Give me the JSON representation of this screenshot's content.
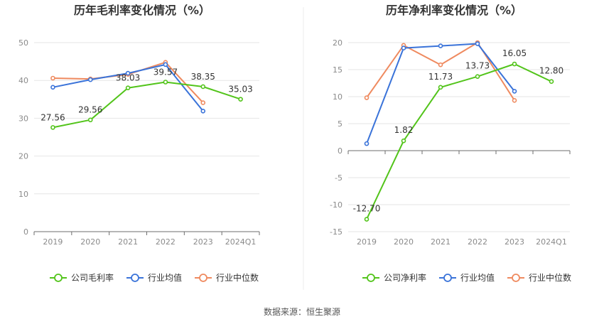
{
  "source": "数据来源：恒生聚源",
  "chart_data": [
    {
      "type": "line",
      "title": "历年毛利率变化情况（%）",
      "categories": [
        "2019",
        "2020",
        "2021",
        "2022",
        "2023",
        "2024Q1"
      ],
      "ylim": [
        0,
        50
      ],
      "yticks": [
        0,
        10,
        20,
        30,
        40,
        50
      ],
      "grid": true,
      "legend_position": "bottom",
      "series": [
        {
          "name": "公司毛利率",
          "color": "#52c41a",
          "values": [
            27.56,
            29.56,
            38.03,
            39.57,
            38.35,
            35.03
          ],
          "labels": [
            "27.56",
            "29.56",
            "38.03",
            "39.57",
            "38.35",
            "35.03"
          ]
        },
        {
          "name": "行业均值",
          "color": "#3a73d9",
          "values": [
            38.2,
            40.2,
            41.9,
            44.2,
            31.9,
            null
          ]
        },
        {
          "name": "行业中位数",
          "color": "#ef8a5f",
          "values": [
            40.6,
            40.4,
            41.6,
            44.8,
            34.1,
            null
          ]
        }
      ]
    },
    {
      "type": "line",
      "title": "历年净利率变化情况（%）",
      "categories": [
        "2019",
        "2020",
        "2021",
        "2022",
        "2023",
        "2024Q1"
      ],
      "ylim": [
        -15,
        20
      ],
      "yticks": [
        -15,
        -10,
        -5,
        0,
        5,
        10,
        15,
        20
      ],
      "grid": true,
      "legend_position": "bottom",
      "series": [
        {
          "name": "公司净利率",
          "color": "#52c41a",
          "values": [
            -12.7,
            1.82,
            11.73,
            13.73,
            16.05,
            12.8
          ],
          "labels": [
            "-12.70",
            "1.82",
            "11.73",
            "13.73",
            "16.05",
            "12.80"
          ]
        },
        {
          "name": "行业均值",
          "color": "#3a73d9",
          "values": [
            1.3,
            19.0,
            19.4,
            19.8,
            11.0,
            null
          ]
        },
        {
          "name": "行业中位数",
          "color": "#ef8a5f",
          "values": [
            9.8,
            19.5,
            15.9,
            20.0,
            9.3,
            null
          ]
        }
      ]
    }
  ]
}
